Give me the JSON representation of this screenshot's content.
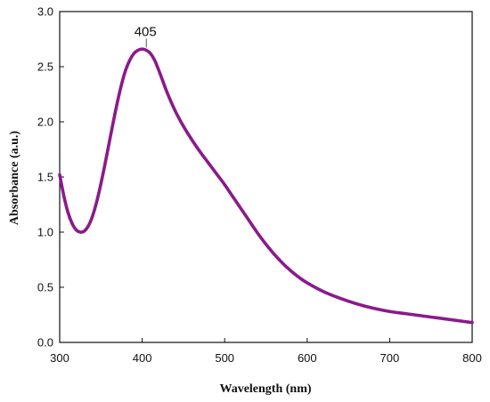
{
  "chart_data": {
    "type": "line",
    "xlabel": "Wavelength (nm)",
    "ylabel": "Absorbance (a.u.)",
    "xlim": [
      300,
      800
    ],
    "ylim": [
      0.0,
      3.0
    ],
    "x_ticks": [
      "300",
      "400",
      "500",
      "600",
      "700",
      "800"
    ],
    "y_ticks": [
      "0.0",
      "0.5",
      "1.0",
      "1.5",
      "2.0",
      "2.5",
      "3.0"
    ],
    "grid": false,
    "line_color": "#8B1A8B",
    "annotations": [
      {
        "text": "405",
        "x": 405,
        "y": 2.65
      }
    ],
    "series": [
      {
        "x": [
          300,
          305,
          310,
          315,
          320,
          325,
          330,
          335,
          340,
          345,
          350,
          355,
          360,
          365,
          370,
          375,
          380,
          385,
          390,
          395,
          400,
          405,
          410,
          415,
          420,
          425,
          430,
          440,
          450,
          460,
          470,
          480,
          490,
          500,
          510,
          520,
          530,
          540,
          550,
          560,
          570,
          580,
          590,
          600,
          620,
          640,
          660,
          680,
          700,
          720,
          740,
          760,
          780,
          800
        ],
        "y": [
          1.52,
          1.33,
          1.18,
          1.08,
          1.02,
          1.0,
          1.01,
          1.06,
          1.15,
          1.28,
          1.44,
          1.62,
          1.81,
          2.0,
          2.18,
          2.34,
          2.47,
          2.56,
          2.62,
          2.65,
          2.66,
          2.65,
          2.62,
          2.56,
          2.47,
          2.37,
          2.27,
          2.1,
          1.96,
          1.84,
          1.73,
          1.63,
          1.53,
          1.43,
          1.32,
          1.21,
          1.1,
          0.99,
          0.89,
          0.8,
          0.72,
          0.65,
          0.59,
          0.54,
          0.46,
          0.4,
          0.35,
          0.31,
          0.28,
          0.26,
          0.24,
          0.22,
          0.2,
          0.18
        ]
      }
    ]
  }
}
